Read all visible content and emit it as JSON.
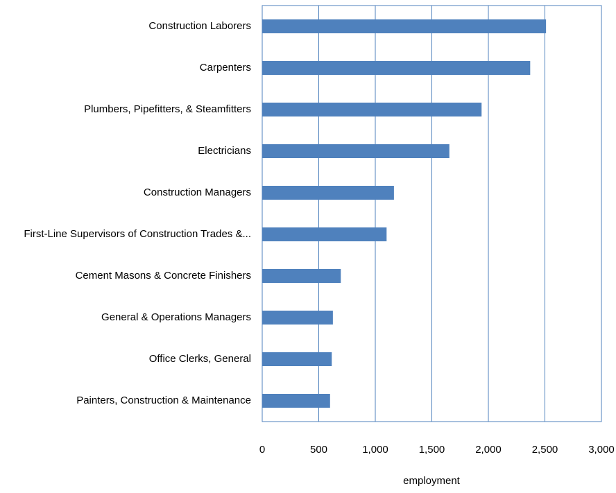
{
  "chart_data": {
    "type": "barh",
    "xlabel": "employment",
    "categories": [
      "Construction Laborers",
      "Carpenters",
      "Plumbers, Pipefitters, & Steamfitters",
      "Electricians",
      "Construction Managers",
      "First-Line Supervisors of Construction Trades &...",
      "Cement Masons & Concrete Finishers",
      "General & Operations Managers",
      "Office Clerks, General",
      "Painters, Construction & Maintenance"
    ],
    "values": [
      2510,
      2370,
      1940,
      1655,
      1165,
      1100,
      695,
      625,
      615,
      600
    ],
    "color": "#4f81bd",
    "xlim": [
      0,
      3000
    ],
    "xticks": [
      0,
      500,
      {
        "value": 1000,
        "label": "1,000"
      },
      {
        "value": 1500,
        "label": "1,500"
      },
      {
        "value": 2000,
        "label": "2,000"
      },
      {
        "value": 2500,
        "label": "2,500"
      },
      {
        "value": 3000,
        "label": "3,000"
      }
    ],
    "grid": true
  }
}
